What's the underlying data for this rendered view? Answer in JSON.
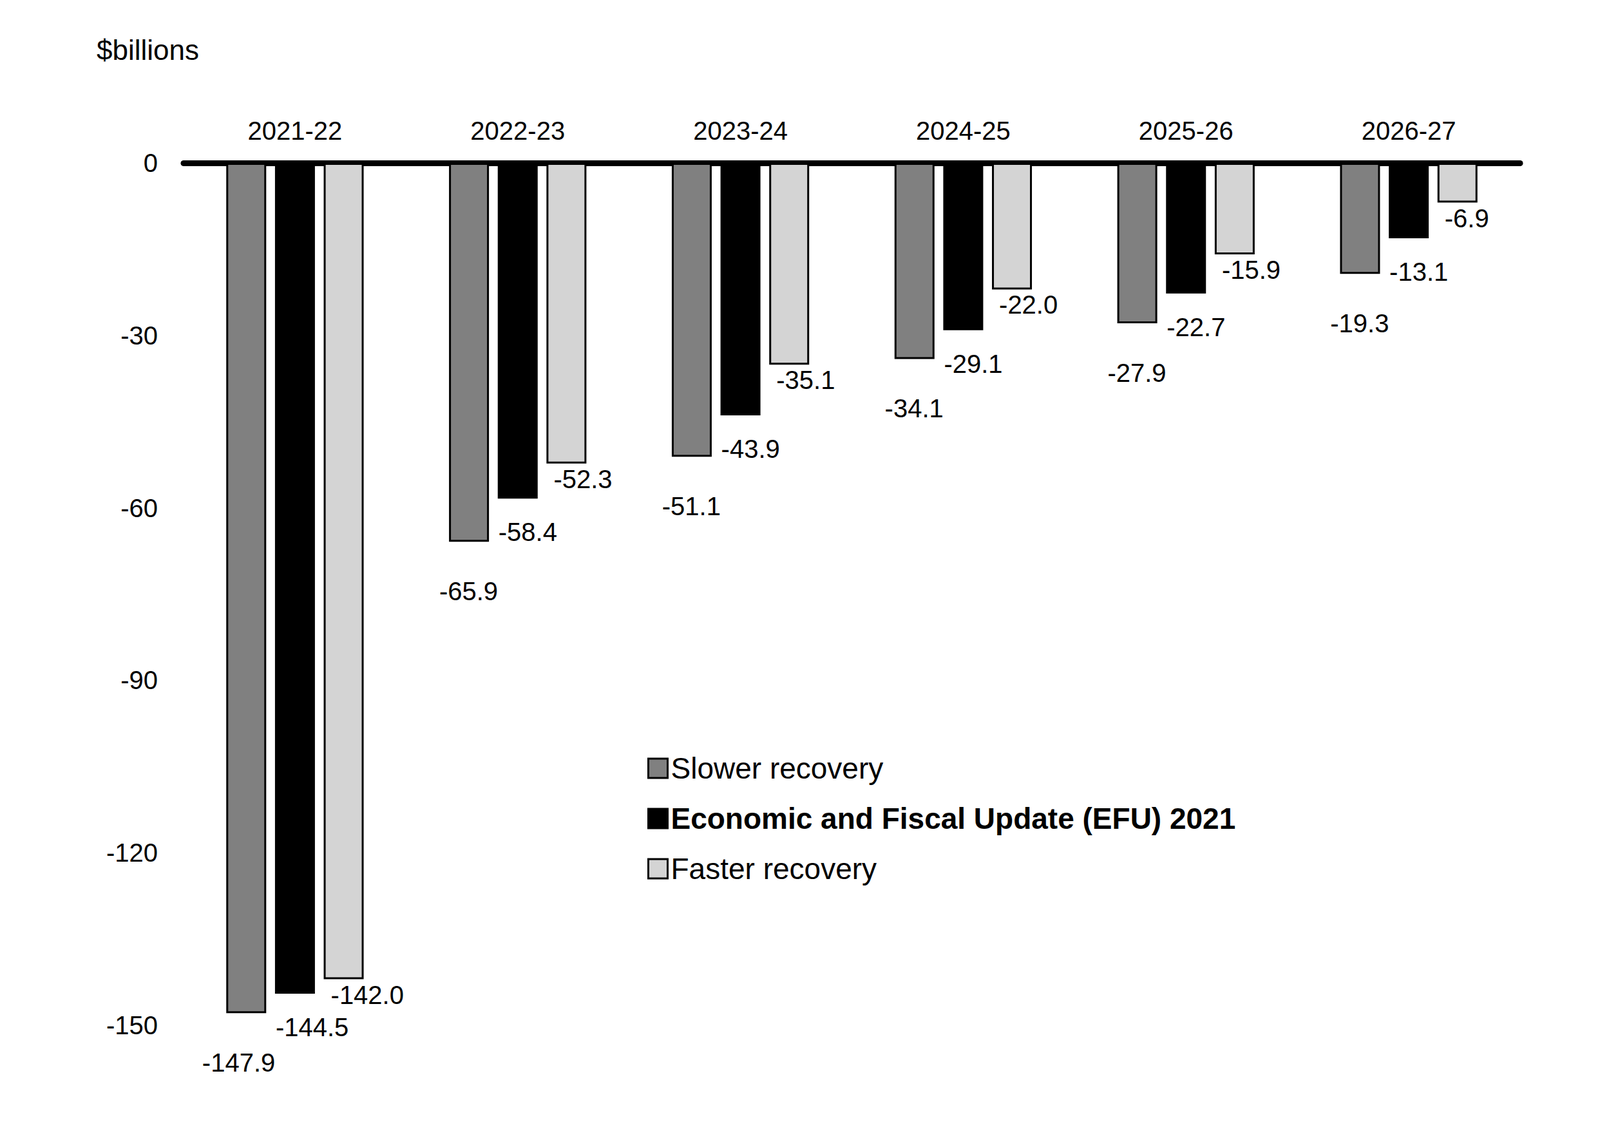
{
  "chart_data": {
    "type": "bar",
    "y_label": "$billions",
    "categories": [
      "2021-22",
      "2022-23",
      "2023-24",
      "2024-25",
      "2025-26",
      "2026-27"
    ],
    "series": [
      {
        "name": "Slower recovery",
        "color": "#808080",
        "values": [
          -147.9,
          -65.9,
          -51.1,
          -34.1,
          -27.9,
          -19.3
        ],
        "value_labels": [
          "-147.9",
          "-65.9",
          "-51.1",
          "-34.1",
          "-27.9",
          "-19.3"
        ]
      },
      {
        "name": "Economic and Fiscal Update (EFU) 2021",
        "color": "#000000",
        "values": [
          -144.5,
          -58.4,
          -43.9,
          -29.1,
          -22.7,
          -13.1
        ],
        "value_labels": [
          "-144.5",
          "-58.4",
          "-43.9",
          "-29.1",
          "-22.7",
          "-13.1"
        ]
      },
      {
        "name": "Faster recovery",
        "color": "#d4d4d4",
        "values": [
          -142.0,
          -52.3,
          -35.1,
          -22.0,
          -15.9,
          -6.9
        ],
        "value_labels": [
          "-142.0",
          "-52.3",
          "-35.1",
          "-22.0",
          "-15.9",
          "-6.9"
        ]
      }
    ],
    "ylim": [
      -150,
      0
    ],
    "yticks": [
      -150,
      -120,
      -90,
      -60,
      -30,
      0
    ],
    "grid": false,
    "data_labels": true,
    "legend": "lower right"
  }
}
